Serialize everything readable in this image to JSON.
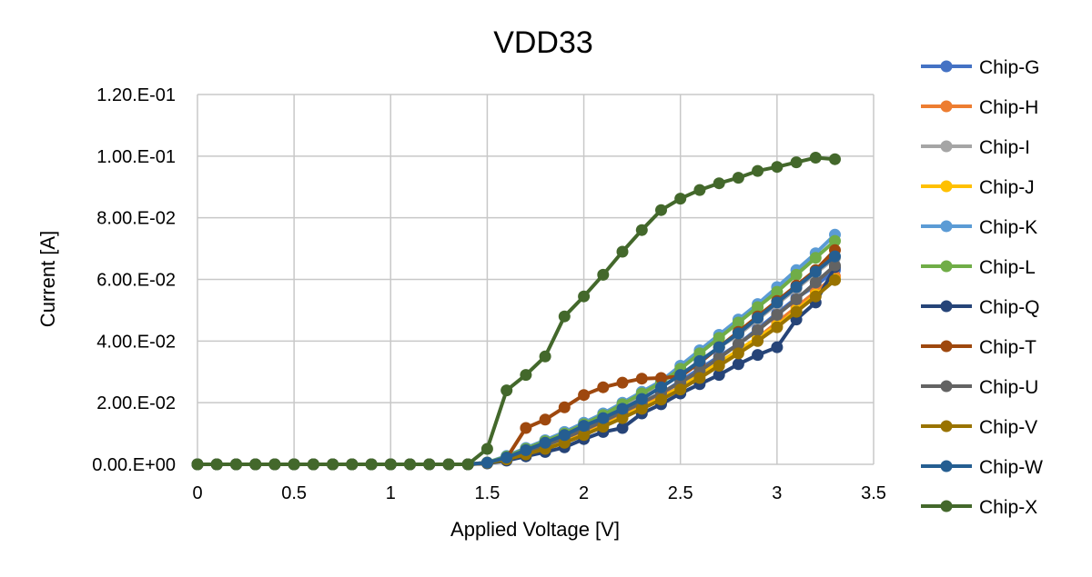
{
  "chart_data": {
    "type": "line",
    "title": "VDD33",
    "xlabel": "Applied Voltage [V]",
    "ylabel": "Current [A]",
    "xlim": [
      0,
      3.5
    ],
    "ylim": [
      0,
      0.12
    ],
    "x_ticks": [
      "0",
      "0.5",
      "1",
      "1.5",
      "2",
      "2.5",
      "3",
      "3.5"
    ],
    "y_ticks": [
      "0.00.E+00",
      "2.00.E-02",
      "4.00.E-02",
      "6.00.E-02",
      "8.00.E-02",
      "1.00.E-01",
      "1.20.E-01"
    ],
    "grid": true,
    "legend_position": "right",
    "x": [
      0,
      0.1,
      0.2,
      0.3,
      0.4,
      0.5,
      0.6,
      0.7,
      0.8,
      0.9,
      1.0,
      1.1,
      1.2,
      1.3,
      1.4,
      1.5,
      1.6,
      1.7,
      1.8,
      1.9,
      2.0,
      2.1,
      2.2,
      2.3,
      2.4,
      2.5,
      2.6,
      2.7,
      2.8,
      2.9,
      3.0,
      3.1,
      3.2,
      3.3
    ],
    "series": [
      {
        "name": "Chip-G",
        "color": "#4472c4",
        "values": [
          0,
          0,
          0,
          0,
          0,
          0,
          0,
          0,
          0,
          0,
          0,
          0,
          0,
          0,
          0,
          0.0005,
          0.002,
          0.004,
          0.006,
          0.008,
          0.011,
          0.014,
          0.017,
          0.02,
          0.023,
          0.027,
          0.031,
          0.035,
          0.039,
          0.044,
          0.049,
          0.054,
          0.058,
          0.063
        ]
      },
      {
        "name": "Chip-H",
        "color": "#ed7d31",
        "values": [
          0,
          0,
          0,
          0,
          0,
          0,
          0,
          0,
          0,
          0,
          0,
          0,
          0,
          0,
          0,
          0.0004,
          0.0018,
          0.0035,
          0.0055,
          0.0075,
          0.01,
          0.013,
          0.016,
          0.019,
          0.022,
          0.025,
          0.029,
          0.033,
          0.037,
          0.041,
          0.046,
          0.051,
          0.056,
          0.061
        ]
      },
      {
        "name": "Chip-I",
        "color": "#a5a5a5",
        "values": [
          0,
          0,
          0,
          0,
          0,
          0,
          0,
          0,
          0,
          0,
          0,
          0,
          0,
          0,
          0,
          0.0005,
          0.0022,
          0.0045,
          0.0068,
          0.0092,
          0.012,
          0.015,
          0.018,
          0.022,
          0.025,
          0.029,
          0.033,
          0.038,
          0.042,
          0.047,
          0.052,
          0.057,
          0.062,
          0.067
        ]
      },
      {
        "name": "Chip-J",
        "color": "#ffc000",
        "values": [
          0,
          0,
          0,
          0,
          0,
          0,
          0,
          0,
          0,
          0,
          0,
          0,
          0,
          0,
          0,
          0.0004,
          0.0017,
          0.0034,
          0.0052,
          0.0072,
          0.0097,
          0.0125,
          0.0155,
          0.0185,
          0.0215,
          0.025,
          0.029,
          0.033,
          0.037,
          0.041,
          0.045,
          0.05,
          0.055,
          0.06
        ]
      },
      {
        "name": "Chip-K",
        "color": "#5b9bd5",
        "values": [
          0,
          0,
          0,
          0,
          0,
          0,
          0,
          0,
          0,
          0,
          0,
          0,
          0,
          0,
          0,
          0.0006,
          0.0027,
          0.0053,
          0.0078,
          0.0105,
          0.0135,
          0.0165,
          0.02,
          0.0235,
          0.027,
          0.032,
          0.037,
          0.042,
          0.047,
          0.052,
          0.0575,
          0.063,
          0.0685,
          0.0745
        ]
      },
      {
        "name": "Chip-L",
        "color": "#70ad47",
        "values": [
          0,
          0,
          0,
          0,
          0,
          0,
          0,
          0,
          0,
          0,
          0,
          0,
          0,
          0,
          0,
          0.0006,
          0.0025,
          0.005,
          0.0075,
          0.01,
          0.013,
          0.016,
          0.0195,
          0.023,
          0.0265,
          0.031,
          0.036,
          0.041,
          0.046,
          0.051,
          0.056,
          0.0615,
          0.067,
          0.0725
        ]
      },
      {
        "name": "Chip-Q",
        "color": "#264478",
        "values": [
          0,
          0,
          0,
          0,
          0,
          0,
          0,
          0,
          0,
          0,
          0,
          0,
          0,
          0,
          0,
          0.0003,
          0.0012,
          0.0026,
          0.004,
          0.0055,
          0.0082,
          0.0105,
          0.0118,
          0.0165,
          0.0195,
          0.023,
          0.026,
          0.029,
          0.0325,
          0.0355,
          0.038,
          0.047,
          0.0525,
          0.064
        ]
      },
      {
        "name": "Chip-T",
        "color": "#9e480e",
        "values": [
          0,
          0,
          0,
          0,
          0,
          0,
          0,
          0,
          0,
          0,
          0,
          0,
          0,
          0,
          0,
          0.0004,
          0.002,
          0.0118,
          0.0145,
          0.0185,
          0.0225,
          0.025,
          0.0265,
          0.0278,
          0.028,
          0.0285,
          0.033,
          0.038,
          0.043,
          0.048,
          0.053,
          0.058,
          0.063,
          0.0695
        ]
      },
      {
        "name": "Chip-U",
        "color": "#636363",
        "values": [
          0,
          0,
          0,
          0,
          0,
          0,
          0,
          0,
          0,
          0,
          0,
          0,
          0,
          0,
          0,
          0.0005,
          0.002,
          0.004,
          0.0062,
          0.0085,
          0.0112,
          0.014,
          0.017,
          0.02,
          0.0232,
          0.0265,
          0.0303,
          0.0345,
          0.039,
          0.0435,
          0.0485,
          0.0535,
          0.059,
          0.0645
        ]
      },
      {
        "name": "Chip-V",
        "color": "#997300",
        "values": [
          0,
          0,
          0,
          0,
          0,
          0,
          0,
          0,
          0,
          0,
          0,
          0,
          0,
          0,
          0,
          0.0004,
          0.0016,
          0.0032,
          0.005,
          0.007,
          0.0095,
          0.0122,
          0.015,
          0.018,
          0.021,
          0.0243,
          0.028,
          0.032,
          0.036,
          0.04,
          0.0445,
          0.0495,
          0.0545,
          0.0598
        ]
      },
      {
        "name": "Chip-W",
        "color": "#255e91",
        "values": [
          0,
          0,
          0,
          0,
          0,
          0,
          0,
          0,
          0,
          0,
          0,
          0,
          0,
          0,
          0,
          0.0005,
          0.0022,
          0.0046,
          0.007,
          0.0095,
          0.0125,
          0.015,
          0.018,
          0.0212,
          0.025,
          0.029,
          0.0335,
          0.038,
          0.0425,
          0.0475,
          0.0525,
          0.0575,
          0.0625,
          0.0675
        ]
      },
      {
        "name": "Chip-X",
        "color": "#43682b",
        "values": [
          0,
          0,
          0,
          0,
          0,
          0,
          0,
          0,
          0,
          0,
          0,
          0,
          0,
          0,
          0,
          0.005,
          0.024,
          0.029,
          0.035,
          0.048,
          0.0545,
          0.0615,
          0.069,
          0.076,
          0.0825,
          0.0862,
          0.089,
          0.0912,
          0.093,
          0.0952,
          0.0965,
          0.098,
          0.0995,
          0.099
        ]
      }
    ]
  }
}
